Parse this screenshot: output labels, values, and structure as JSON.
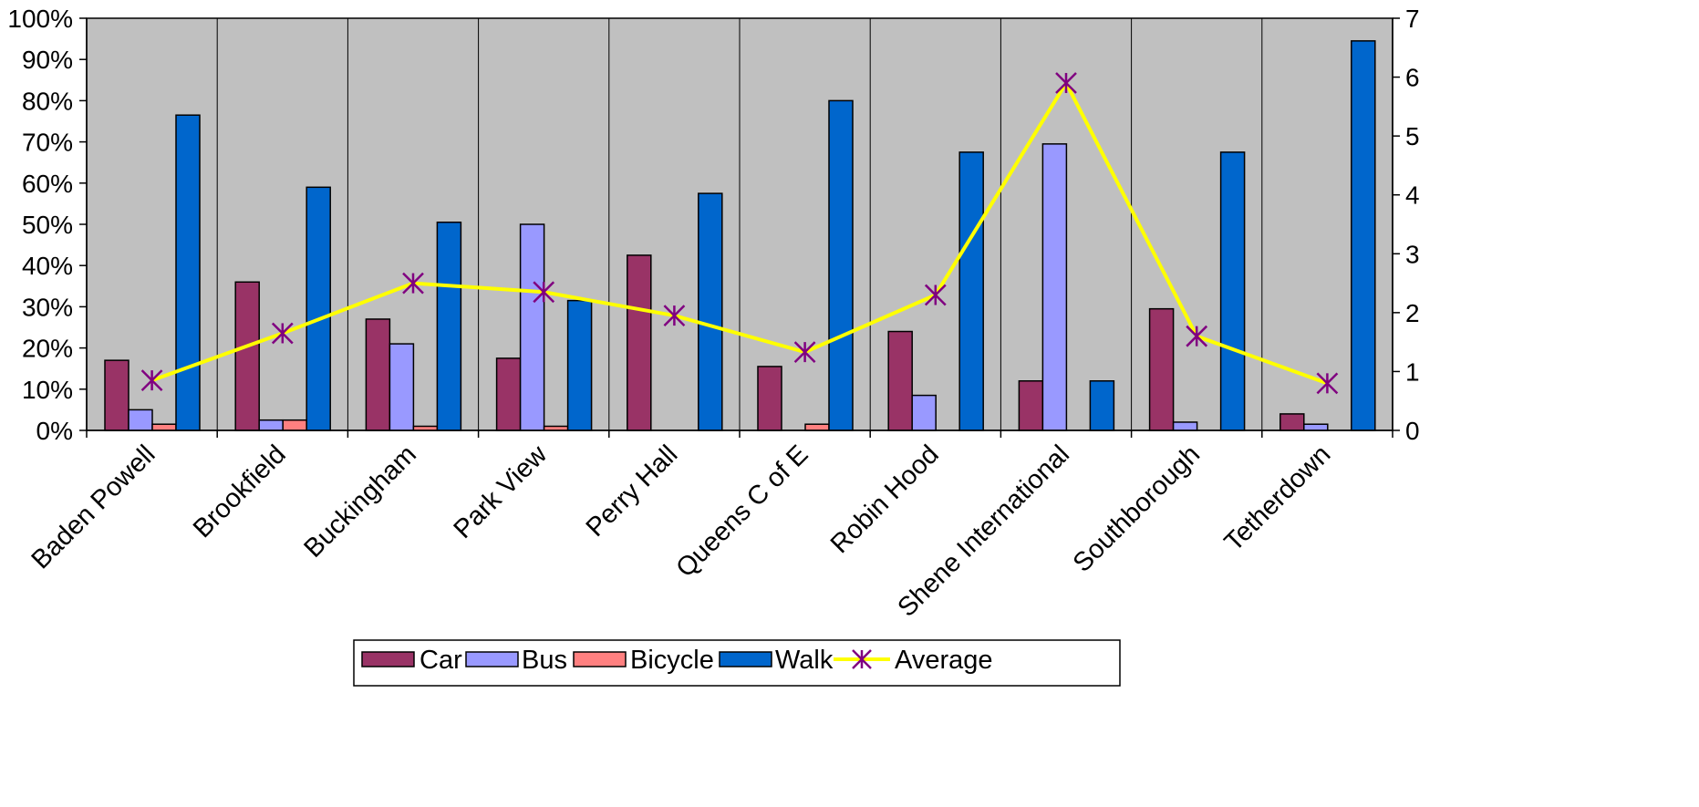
{
  "chart_data": {
    "type": "bar",
    "categories": [
      "Baden Powell",
      "Brookfield",
      "Buckingham",
      "Park View",
      "Perry Hall",
      "Queens C of E",
      "Robin Hood",
      "Shene International",
      "Southborough",
      "Tetherdown"
    ],
    "series": [
      {
        "name": "Car",
        "axis": "left",
        "type": "bar",
        "color": "#993366",
        "values": [
          0.17,
          0.36,
          0.27,
          0.175,
          0.425,
          0.155,
          0.24,
          0.12,
          0.295,
          0.04
        ]
      },
      {
        "name": "Bus",
        "axis": "left",
        "type": "bar",
        "color": "#9999ff",
        "values": [
          0.05,
          0.025,
          0.21,
          0.5,
          0,
          0,
          0.085,
          0.695,
          0.02,
          0.015
        ]
      },
      {
        "name": "Bicycle",
        "axis": "left",
        "type": "bar",
        "color": "#ff8080",
        "values": [
          0.015,
          0.025,
          0.01,
          0.01,
          0,
          0.015,
          0,
          0,
          0,
          0
        ]
      },
      {
        "name": "Walk",
        "axis": "left",
        "type": "bar",
        "color": "#0066cc",
        "values": [
          0.765,
          0.59,
          0.505,
          0.315,
          0.575,
          0.8,
          0.675,
          0.12,
          0.675,
          0.945
        ]
      },
      {
        "name": "Average",
        "axis": "right",
        "type": "line",
        "color": "#ffff00",
        "marker_color": "#800080",
        "values": [
          0.85,
          1.65,
          2.5,
          2.35,
          1.95,
          1.33,
          2.3,
          5.9,
          1.6,
          0.8
        ]
      }
    ],
    "y_left": {
      "min": 0,
      "max": 1,
      "ticks": [
        "0%",
        "10%",
        "20%",
        "30%",
        "40%",
        "50%",
        "60%",
        "70%",
        "80%",
        "90%",
        "100%"
      ]
    },
    "y_right": {
      "min": 0,
      "max": 7,
      "ticks": [
        "0",
        "1",
        "2",
        "3",
        "4",
        "5",
        "6",
        "7"
      ]
    },
    "plot_background": "#c0c0c0",
    "vertical_gridlines": true,
    "legend_position": "bottom"
  }
}
